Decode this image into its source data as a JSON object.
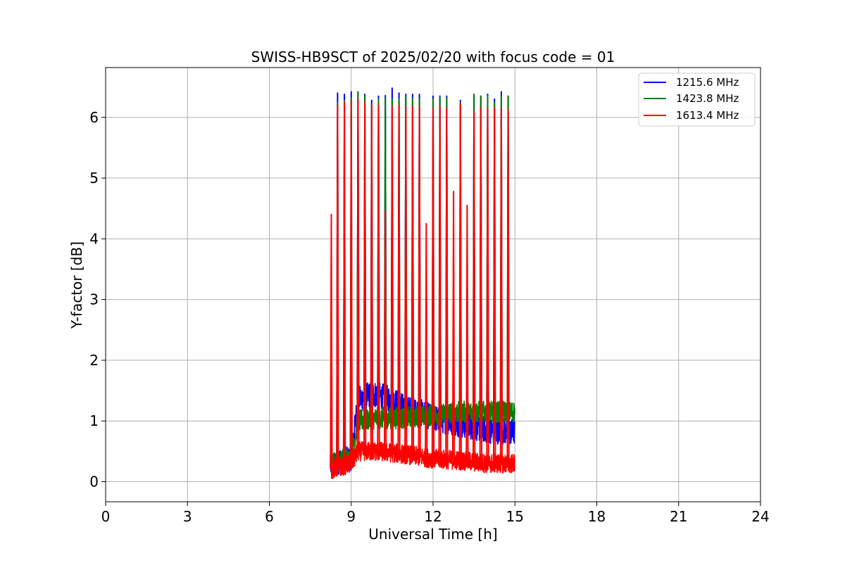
{
  "chart_data": {
    "type": "line",
    "title": "SWISS-HB9SCT of 2025/02/20 with focus code = 01",
    "xlabel": "Universal Time [h]",
    "ylabel": "Y-factor [dB]",
    "xlim": [
      0,
      24
    ],
    "ylim": [
      -0.33,
      6.82
    ],
    "xticks": [
      0,
      3,
      6,
      9,
      12,
      15,
      18,
      21,
      24
    ],
    "yticks": [
      0,
      1,
      2,
      3,
      4,
      5,
      6
    ],
    "grid": true,
    "legend_position": "top-right",
    "series": [
      {
        "name": "1215.6 MHz",
        "color": "#0000ff",
        "start_time": 8.25,
        "end_time": 15.0,
        "baseline": [
          [
            8.25,
            0.25
          ],
          [
            9.0,
            0.4
          ],
          [
            9.25,
            1.35
          ],
          [
            9.8,
            1.45
          ],
          [
            10.5,
            1.35
          ],
          [
            11.0,
            1.2
          ],
          [
            11.5,
            1.15
          ],
          [
            12.0,
            1.05
          ],
          [
            13.0,
            0.95
          ],
          [
            14.0,
            0.85
          ],
          [
            15.0,
            0.82
          ]
        ],
        "spike_peaks": [
          [
            8.27,
            1.6
          ],
          [
            8.5,
            6.4
          ],
          [
            8.75,
            6.38
          ],
          [
            9.0,
            6.42
          ],
          [
            9.25,
            6.42
          ],
          [
            9.5,
            6.38
          ],
          [
            9.75,
            6.28
          ],
          [
            10.0,
            6.35
          ],
          [
            10.25,
            6.36
          ],
          [
            10.5,
            6.48
          ],
          [
            10.75,
            6.4
          ],
          [
            11.0,
            6.38
          ],
          [
            11.25,
            6.38
          ],
          [
            11.5,
            6.38
          ],
          [
            12.0,
            6.35
          ],
          [
            12.25,
            6.35
          ],
          [
            12.5,
            6.35
          ],
          [
            13.0,
            6.28
          ],
          [
            13.5,
            6.38
          ],
          [
            13.75,
            6.35
          ],
          [
            14.0,
            6.38
          ],
          [
            14.25,
            6.3
          ],
          [
            14.5,
            6.42
          ],
          [
            14.75,
            6.35
          ]
        ]
      },
      {
        "name": "1423.8 MHz",
        "color": "#008000",
        "start_time": 8.25,
        "end_time": 15.0,
        "baseline": [
          [
            8.25,
            0.3
          ],
          [
            9.0,
            0.4
          ],
          [
            9.25,
            1.0
          ],
          [
            10.0,
            1.05
          ],
          [
            11.0,
            1.05
          ],
          [
            12.0,
            1.1
          ],
          [
            13.0,
            1.15
          ],
          [
            14.0,
            1.15
          ],
          [
            15.0,
            1.15
          ]
        ],
        "spike_peaks": [
          [
            8.5,
            6.25
          ],
          [
            8.75,
            6.28
          ],
          [
            9.0,
            6.32
          ],
          [
            9.25,
            6.42
          ],
          [
            9.5,
            6.35
          ],
          [
            9.75,
            6.22
          ],
          [
            10.0,
            6.3
          ],
          [
            10.25,
            6.32
          ],
          [
            10.5,
            6.3
          ],
          [
            10.75,
            6.3
          ],
          [
            11.0,
            6.35
          ],
          [
            11.25,
            6.32
          ],
          [
            11.5,
            6.3
          ],
          [
            12.0,
            6.3
          ],
          [
            12.25,
            6.33
          ],
          [
            12.5,
            6.32
          ],
          [
            13.0,
            6.25
          ],
          [
            13.5,
            6.38
          ],
          [
            13.75,
            6.35
          ],
          [
            14.0,
            6.35
          ],
          [
            14.25,
            6.25
          ],
          [
            14.5,
            6.35
          ],
          [
            14.75,
            6.35
          ]
        ]
      },
      {
        "name": "1613.4 MHz",
        "color": "#ff0000",
        "start_time": 8.25,
        "end_time": 15.0,
        "baseline": [
          [
            8.25,
            0.2
          ],
          [
            9.0,
            0.3
          ],
          [
            9.25,
            0.5
          ],
          [
            10.0,
            0.5
          ],
          [
            11.0,
            0.45
          ],
          [
            12.0,
            0.38
          ],
          [
            13.0,
            0.35
          ],
          [
            14.0,
            0.3
          ],
          [
            15.0,
            0.3
          ]
        ],
        "spike_peaks": [
          [
            8.27,
            4.4
          ],
          [
            8.5,
            6.2
          ],
          [
            8.75,
            6.25
          ],
          [
            9.0,
            6.28
          ],
          [
            9.25,
            6.3
          ],
          [
            9.5,
            6.25
          ],
          [
            9.75,
            6.2
          ],
          [
            10.0,
            6.2
          ],
          [
            10.25,
            4.47
          ],
          [
            10.5,
            6.18
          ],
          [
            10.75,
            6.2
          ],
          [
            11.0,
            6.18
          ],
          [
            11.25,
            6.18
          ],
          [
            11.5,
            6.18
          ],
          [
            11.75,
            4.25
          ],
          [
            12.0,
            6.15
          ],
          [
            12.25,
            6.18
          ],
          [
            12.5,
            6.15
          ],
          [
            12.75,
            4.78
          ],
          [
            13.0,
            6.22
          ],
          [
            13.25,
            4.55
          ],
          [
            13.5,
            6.1
          ],
          [
            13.75,
            6.15
          ],
          [
            14.0,
            6.15
          ],
          [
            14.25,
            6.15
          ],
          [
            14.5,
            6.15
          ],
          [
            14.75,
            6.13
          ]
        ]
      }
    ]
  }
}
